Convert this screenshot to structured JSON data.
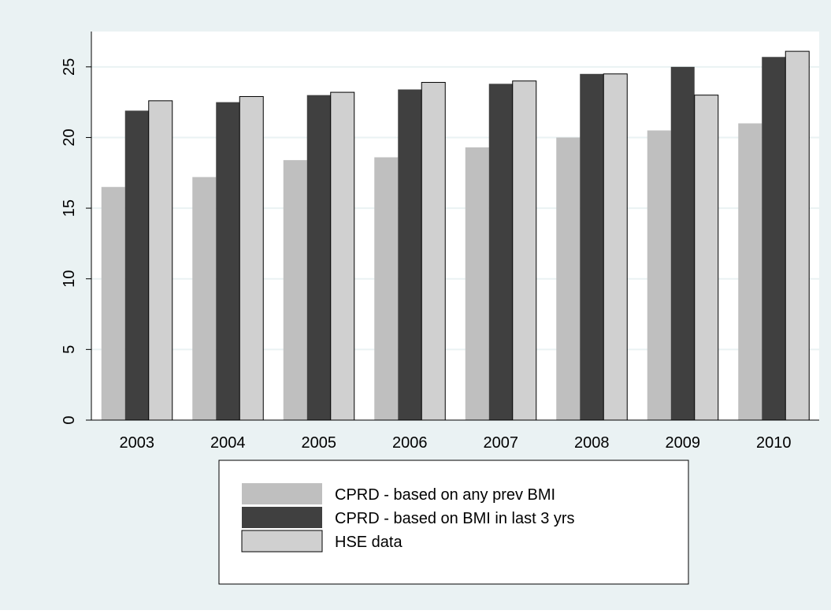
{
  "chart_data": {
    "type": "bar",
    "categories": [
      "2003",
      "2004",
      "2005",
      "2006",
      "2007",
      "2008",
      "2009",
      "2010"
    ],
    "series": [
      {
        "name": "CPRD - based on any prev BMI",
        "values": [
          16.5,
          17.2,
          18.4,
          18.6,
          19.3,
          20.0,
          20.5,
          21.0
        ],
        "color": "#bfbfbf",
        "outlined": false
      },
      {
        "name": "CPRD - based on BMI in last 3 yrs",
        "values": [
          21.9,
          22.5,
          23.0,
          23.4,
          23.8,
          24.5,
          25.0,
          25.7
        ],
        "color": "#404040",
        "outlined": false
      },
      {
        "name": "HSE data",
        "values": [
          22.6,
          22.9,
          23.2,
          23.9,
          24.0,
          24.5,
          23.0,
          26.1
        ],
        "color": "#d0d0d0",
        "outlined": true
      }
    ],
    "ylim": [
      0,
      27.5
    ],
    "yticks": [
      "0",
      "5",
      "10",
      "15",
      "20",
      "25"
    ],
    "grid": true,
    "legend_position": "bottom",
    "title": "",
    "xlabel": "",
    "ylabel": "",
    "colors": {
      "outer_background": "#eaf2f3",
      "plot_background": "#ffffff",
      "grid": "#eaf2f3",
      "axis": "#000000"
    }
  }
}
